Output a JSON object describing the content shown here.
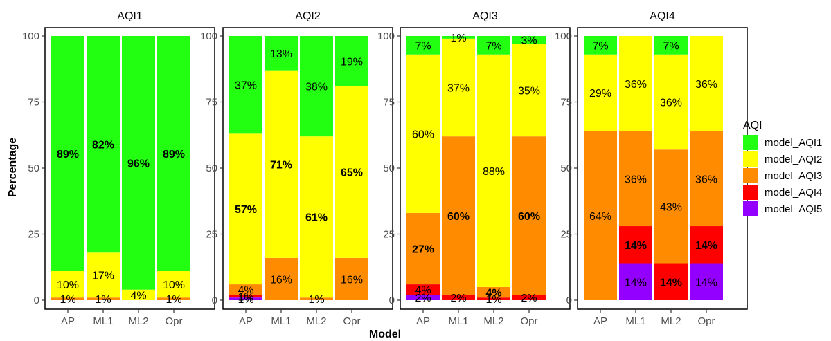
{
  "chart_data": {
    "type": "bar",
    "stacked": true,
    "xlabel": "Model",
    "ylabel": "Percentage",
    "ylim": [
      0,
      100
    ],
    "yticks": [
      0,
      25,
      50,
      75,
      100
    ],
    "categories": [
      "AP",
      "ML1",
      "ML2",
      "Opr"
    ],
    "grid": false,
    "legend": {
      "title": "AQI",
      "placement": "right",
      "entries": [
        {
          "name": "model_AQI1",
          "color": "#22FF10"
        },
        {
          "name": "model_AQI2",
          "color": "#FFFF00"
        },
        {
          "name": "model_AQI3",
          "color": "#FF8C00"
        },
        {
          "name": "model_AQI4",
          "color": "#FF0000"
        },
        {
          "name": "model_AQI5",
          "color": "#9400FF"
        }
      ]
    },
    "panels": [
      {
        "title": "AQI1",
        "bars": [
          {
            "category": "AP",
            "segments": [
              {
                "series": "model_AQI5",
                "value": 0,
                "label": ""
              },
              {
                "series": "model_AQI4",
                "value": 0,
                "label": ""
              },
              {
                "series": "model_AQI3",
                "value": 1,
                "label": "1%",
                "bold": false
              },
              {
                "series": "model_AQI2",
                "value": 10,
                "label": "10%",
                "bold": false
              },
              {
                "series": "model_AQI1",
                "value": 89,
                "label": "89%",
                "bold": true
              }
            ]
          },
          {
            "category": "ML1",
            "segments": [
              {
                "series": "model_AQI5",
                "value": 0,
                "label": ""
              },
              {
                "series": "model_AQI4",
                "value": 0,
                "label": ""
              },
              {
                "series": "model_AQI3",
                "value": 1,
                "label": "1%",
                "bold": false
              },
              {
                "series": "model_AQI2",
                "value": 17,
                "label": "17%",
                "bold": false
              },
              {
                "series": "model_AQI1",
                "value": 82,
                "label": "82%",
                "bold": true
              }
            ]
          },
          {
            "category": "ML2",
            "segments": [
              {
                "series": "model_AQI5",
                "value": 0,
                "label": ""
              },
              {
                "series": "model_AQI4",
                "value": 0,
                "label": ""
              },
              {
                "series": "model_AQI3",
                "value": 0,
                "label": ""
              },
              {
                "series": "model_AQI2",
                "value": 4,
                "label": "4%",
                "bold": false
              },
              {
                "series": "model_AQI1",
                "value": 96,
                "label": "96%",
                "bold": true
              }
            ]
          },
          {
            "category": "Opr",
            "segments": [
              {
                "series": "model_AQI5",
                "value": 0,
                "label": ""
              },
              {
                "series": "model_AQI4",
                "value": 0,
                "label": ""
              },
              {
                "series": "model_AQI3",
                "value": 1,
                "label": "1%",
                "bold": false
              },
              {
                "series": "model_AQI2",
                "value": 10,
                "label": "10%",
                "bold": false
              },
              {
                "series": "model_AQI1",
                "value": 89,
                "label": "89%",
                "bold": true
              }
            ]
          }
        ]
      },
      {
        "title": "AQI2",
        "bars": [
          {
            "category": "AP",
            "segments": [
              {
                "series": "model_AQI5",
                "value": 1,
                "label": "1%",
                "bold": false
              },
              {
                "series": "model_AQI4",
                "value": 1,
                "label": "1%",
                "bold": false
              },
              {
                "series": "model_AQI3",
                "value": 4,
                "label": "4%",
                "bold": false
              },
              {
                "series": "model_AQI2",
                "value": 57,
                "label": "57%",
                "bold": true
              },
              {
                "series": "model_AQI1",
                "value": 37,
                "label": "37%",
                "bold": false
              }
            ]
          },
          {
            "category": "ML1",
            "segments": [
              {
                "series": "model_AQI5",
                "value": 0,
                "label": ""
              },
              {
                "series": "model_AQI4",
                "value": 0,
                "label": ""
              },
              {
                "series": "model_AQI3",
                "value": 16,
                "label": "16%",
                "bold": false
              },
              {
                "series": "model_AQI2",
                "value": 71,
                "label": "71%",
                "bold": true
              },
              {
                "series": "model_AQI1",
                "value": 13,
                "label": "13%",
                "bold": false
              }
            ]
          },
          {
            "category": "ML2",
            "segments": [
              {
                "series": "model_AQI5",
                "value": 0,
                "label": ""
              },
              {
                "series": "model_AQI4",
                "value": 0,
                "label": ""
              },
              {
                "series": "model_AQI3",
                "value": 1,
                "label": "1%",
                "bold": false
              },
              {
                "series": "model_AQI2",
                "value": 61,
                "label": "61%",
                "bold": true
              },
              {
                "series": "model_AQI1",
                "value": 38,
                "label": "38%",
                "bold": false
              }
            ]
          },
          {
            "category": "Opr",
            "segments": [
              {
                "series": "model_AQI5",
                "value": 0,
                "label": ""
              },
              {
                "series": "model_AQI4",
                "value": 0,
                "label": ""
              },
              {
                "series": "model_AQI3",
                "value": 16,
                "label": "16%",
                "bold": false
              },
              {
                "series": "model_AQI2",
                "value": 65,
                "label": "65%",
                "bold": true
              },
              {
                "series": "model_AQI1",
                "value": 19,
                "label": "19%",
                "bold": false
              }
            ]
          }
        ]
      },
      {
        "title": "AQI3",
        "bars": [
          {
            "category": "AP",
            "segments": [
              {
                "series": "model_AQI5",
                "value": 2,
                "label": "2%",
                "bold": false
              },
              {
                "series": "model_AQI4",
                "value": 4,
                "label": "4%",
                "bold": false
              },
              {
                "series": "model_AQI3",
                "value": 27,
                "label": "27%",
                "bold": true
              },
              {
                "series": "model_AQI2",
                "value": 60,
                "label": "60%",
                "bold": false
              },
              {
                "series": "model_AQI1",
                "value": 7,
                "label": "7%",
                "bold": false
              }
            ]
          },
          {
            "category": "ML1",
            "segments": [
              {
                "series": "model_AQI5",
                "value": 0,
                "label": ""
              },
              {
                "series": "model_AQI4",
                "value": 2,
                "label": "2%",
                "bold": false
              },
              {
                "series": "model_AQI3",
                "value": 60,
                "label": "60%",
                "bold": true
              },
              {
                "series": "model_AQI2",
                "value": 37,
                "label": "37%",
                "bold": false
              },
              {
                "series": "model_AQI1",
                "value": 1,
                "label": "1%",
                "bold": false
              }
            ]
          },
          {
            "category": "ML2",
            "segments": [
              {
                "series": "model_AQI5",
                "value": 0,
                "label": ""
              },
              {
                "series": "model_AQI4",
                "value": 1,
                "label": "1%",
                "bold": false
              },
              {
                "series": "model_AQI3",
                "value": 4,
                "label": "4%",
                "bold": true
              },
              {
                "series": "model_AQI2",
                "value": 88,
                "label": "88%",
                "bold": false
              },
              {
                "series": "model_AQI1",
                "value": 7,
                "label": "7%",
                "bold": false
              }
            ]
          },
          {
            "category": "Opr",
            "segments": [
              {
                "series": "model_AQI5",
                "value": 0,
                "label": ""
              },
              {
                "series": "model_AQI4",
                "value": 2,
                "label": "2%",
                "bold": false
              },
              {
                "series": "model_AQI3",
                "value": 60,
                "label": "60%",
                "bold": true
              },
              {
                "series": "model_AQI2",
                "value": 35,
                "label": "35%",
                "bold": false
              },
              {
                "series": "model_AQI1",
                "value": 3,
                "label": "3%",
                "bold": false
              }
            ]
          }
        ]
      },
      {
        "title": "AQI4",
        "bars": [
          {
            "category": "AP",
            "segments": [
              {
                "series": "model_AQI5",
                "value": 0,
                "label": ""
              },
              {
                "series": "model_AQI4",
                "value": 0,
                "label": ""
              },
              {
                "series": "model_AQI3",
                "value": 64,
                "label": "64%",
                "bold": false
              },
              {
                "series": "model_AQI2",
                "value": 29,
                "label": "29%",
                "bold": false
              },
              {
                "series": "model_AQI1",
                "value": 7,
                "label": "7%",
                "bold": false
              }
            ]
          },
          {
            "category": "ML1",
            "segments": [
              {
                "series": "model_AQI5",
                "value": 14,
                "label": "14%",
                "bold": false
              },
              {
                "series": "model_AQI4",
                "value": 14,
                "label": "14%",
                "bold": true
              },
              {
                "series": "model_AQI3",
                "value": 36,
                "label": "36%",
                "bold": false
              },
              {
                "series": "model_AQI2",
                "value": 36,
                "label": "36%",
                "bold": false
              },
              {
                "series": "model_AQI1",
                "value": 0,
                "label": ""
              }
            ]
          },
          {
            "category": "ML2",
            "segments": [
              {
                "series": "model_AQI5",
                "value": 0,
                "label": ""
              },
              {
                "series": "model_AQI4",
                "value": 14,
                "label": "14%",
                "bold": true
              },
              {
                "series": "model_AQI3",
                "value": 43,
                "label": "43%",
                "bold": false
              },
              {
                "series": "model_AQI2",
                "value": 36,
                "label": "36%",
                "bold": false
              },
              {
                "series": "model_AQI1",
                "value": 7,
                "label": "7%",
                "bold": false
              }
            ]
          },
          {
            "category": "Opr",
            "segments": [
              {
                "series": "model_AQI5",
                "value": 14,
                "label": "14%",
                "bold": false
              },
              {
                "series": "model_AQI4",
                "value": 14,
                "label": "14%",
                "bold": true
              },
              {
                "series": "model_AQI3",
                "value": 36,
                "label": "36%",
                "bold": false
              },
              {
                "series": "model_AQI2",
                "value": 36,
                "label": "36%",
                "bold": false
              },
              {
                "series": "model_AQI1",
                "value": 0,
                "label": ""
              }
            ]
          }
        ]
      }
    ]
  }
}
